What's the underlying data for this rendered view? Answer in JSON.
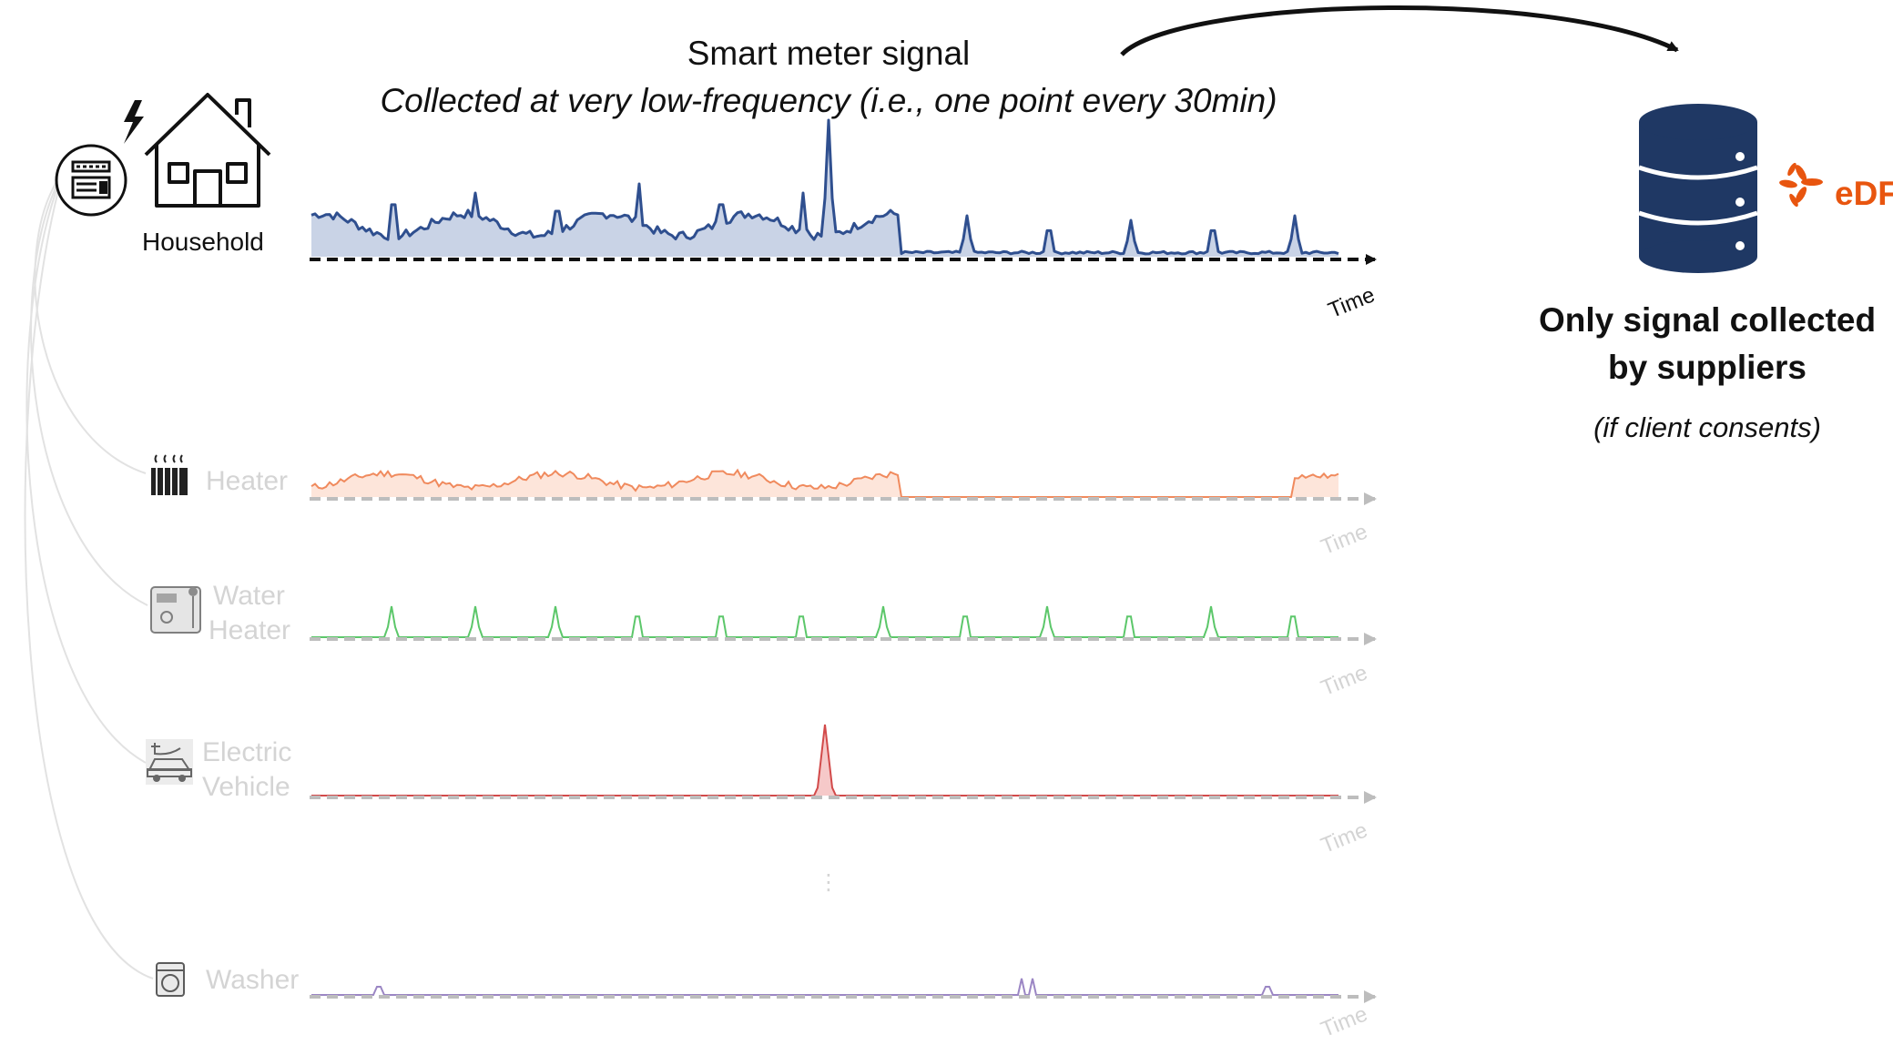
{
  "header": {
    "title": "Smart meter signal",
    "subtitle": "Collected at very low-frequency (i.e., one point every 30min)"
  },
  "household": {
    "label": "Household"
  },
  "supplier": {
    "title_line1": "Only signal collected",
    "title_line2": "by suppliers",
    "note": "(if client consents)",
    "logo_text": "eDF"
  },
  "axis_label": "Time",
  "ellipsis": "⋮",
  "appliances": [
    {
      "id": "heater",
      "label_lines": [
        "Heater"
      ],
      "icon": "radiator-icon",
      "color": "#f08a5d"
    },
    {
      "id": "water-heater",
      "label_lines": [
        "Water",
        "Heater"
      ],
      "icon": "water-heater-icon",
      "color": "#5cc76a"
    },
    {
      "id": "electric-vehicle",
      "label_lines": [
        "Electric",
        "Vehicle"
      ],
      "icon": "electric-car-icon",
      "color": "#d24a4a"
    },
    {
      "id": "washer",
      "label_lines": [
        "Washer"
      ],
      "icon": "washing-machine-icon",
      "color": "#9b86c4"
    }
  ],
  "colors": {
    "household_line": "#2f4f8f",
    "household_fill": "#c9d3e6",
    "database": "#1f3864",
    "edf_orange": "#e8550f",
    "faded_axis": "#bdbdbd",
    "wire": "#e0e0e0"
  }
}
